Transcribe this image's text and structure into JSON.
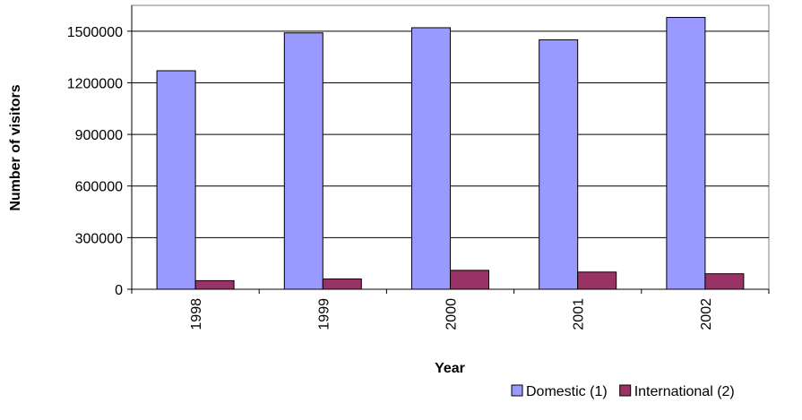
{
  "chart_data": {
    "type": "bar",
    "title": "",
    "xlabel": "Year",
    "ylabel": "Number of visitors",
    "categories": [
      "1998",
      "1999",
      "2000",
      "2001",
      "2002"
    ],
    "series": [
      {
        "name": "Domestic (1)",
        "color": "#9999ff",
        "values": [
          1270000,
          1490000,
          1520000,
          1450000,
          1580000
        ]
      },
      {
        "name": "International (2)",
        "color": "#993366",
        "values": [
          50000,
          60000,
          110000,
          100000,
          90000
        ]
      }
    ],
    "ylim": [
      0,
      1650000
    ],
    "yticks": [
      0,
      300000,
      600000,
      900000,
      1200000,
      1500000
    ],
    "ytick_labels": [
      "0",
      "300000",
      "600000",
      "900000",
      "1200000",
      "1500000"
    ],
    "grid": true,
    "legend_position": "bottom-right"
  }
}
